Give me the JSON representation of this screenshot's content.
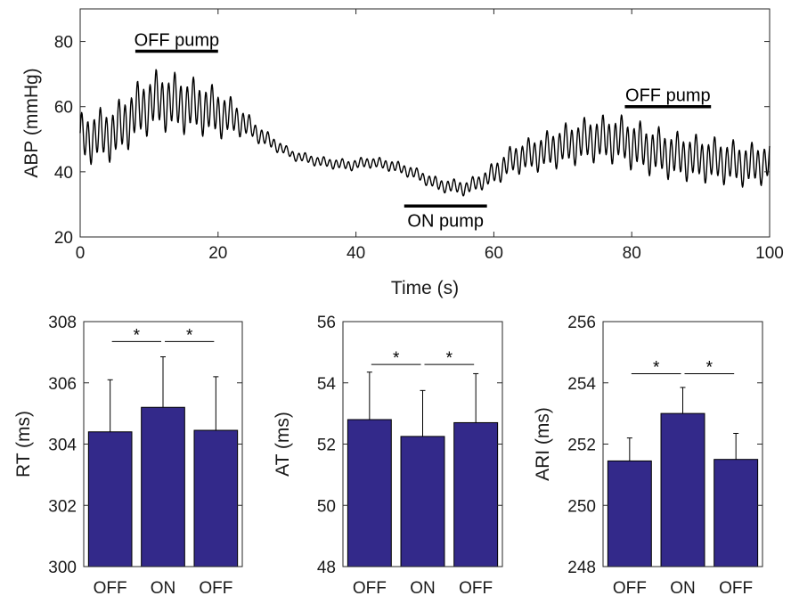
{
  "colors": {
    "bar": "#33298a",
    "axis": "#262626",
    "trace": "#000000"
  },
  "chart_data": [
    {
      "type": "line",
      "title": "",
      "xlabel": "Time (s)",
      "ylabel": "ABP (mmHg)",
      "xlim": [
        0,
        100
      ],
      "ylim": [
        20,
        90
      ],
      "xticks": [
        "0",
        "20",
        "40",
        "60",
        "80",
        "100"
      ],
      "yticks": [
        "20",
        "40",
        "60",
        "80"
      ],
      "series": [
        {
          "baseline": [
            [
              0,
              50
            ],
            [
              5,
              52
            ],
            [
              8,
              58
            ],
            [
              11,
              62
            ],
            [
              14,
              61
            ],
            [
              17,
              60
            ],
            [
              20,
              58
            ],
            [
              23,
              56
            ],
            [
              27,
              50
            ],
            [
              31,
              45
            ],
            [
              35,
              43
            ],
            [
              39,
              42
            ],
            [
              42,
              43
            ],
            [
              45,
              42
            ],
            [
              48,
              40
            ],
            [
              52,
              36
            ],
            [
              56,
              35
            ],
            [
              59,
              38
            ],
            [
              63,
              44
            ],
            [
              67,
              46
            ],
            [
              70,
              48
            ],
            [
              74,
              50
            ],
            [
              78,
              50
            ],
            [
              82,
              47
            ],
            [
              86,
              45
            ],
            [
              90,
              44
            ],
            [
              94,
              43
            ],
            [
              97,
              42
            ],
            [
              100,
              43
            ]
          ],
          "amplitude": [
            [
              0,
              6
            ],
            [
              8,
              7
            ],
            [
              14,
              7
            ],
            [
              20,
              6
            ],
            [
              25,
              2.5
            ],
            [
              30,
              1.2
            ],
            [
              50,
              1.5
            ],
            [
              58,
              2
            ],
            [
              62,
              3.5
            ],
            [
              70,
              5
            ],
            [
              80,
              6
            ],
            [
              100,
              5
            ]
          ]
        }
      ],
      "annotations": [
        {
          "label": "OFF pump",
          "x_range": [
            8,
            20
          ],
          "y": 77,
          "label_position": "above"
        },
        {
          "label": "ON pump",
          "x_range": [
            47,
            59
          ],
          "y": 29.5,
          "label_position": "below"
        },
        {
          "label": "OFF pump",
          "x_range": [
            79,
            91.5
          ],
          "y": 60,
          "label_position": "above"
        }
      ]
    },
    {
      "type": "bar",
      "ylabel": "RT (ms)",
      "categories": [
        "OFF",
        "ON",
        "OFF"
      ],
      "values": [
        304.4,
        305.2,
        304.45
      ],
      "errors": [
        1.7,
        1.65,
        1.75
      ],
      "ylim": [
        300,
        308
      ],
      "yticks": [
        "300",
        "302",
        "304",
        "306",
        "308"
      ],
      "significance": [
        {
          "between": [
            0,
            1
          ],
          "y": 307.35,
          "label": "*"
        },
        {
          "between": [
            1,
            2
          ],
          "y": 307.35,
          "label": "*"
        }
      ]
    },
    {
      "type": "bar",
      "ylabel": "AT (ms)",
      "categories": [
        "OFF",
        "ON",
        "OFF"
      ],
      "values": [
        52.8,
        52.25,
        52.7
      ],
      "errors": [
        1.55,
        1.5,
        1.6
      ],
      "ylim": [
        48,
        56
      ],
      "yticks": [
        "48",
        "50",
        "52",
        "54",
        "56"
      ],
      "significance": [
        {
          "between": [
            0,
            1
          ],
          "y": 54.6,
          "label": "*"
        },
        {
          "between": [
            1,
            2
          ],
          "y": 54.6,
          "label": "*"
        }
      ]
    },
    {
      "type": "bar",
      "ylabel": "ARI (ms)",
      "categories": [
        "OFF",
        "ON",
        "OFF"
      ],
      "values": [
        251.45,
        253.0,
        251.5
      ],
      "errors": [
        0.75,
        0.85,
        0.85
      ],
      "ylim": [
        248,
        256
      ],
      "yticks": [
        "248",
        "250",
        "252",
        "254",
        "256"
      ],
      "significance": [
        {
          "between": [
            0,
            1
          ],
          "y": 254.3,
          "label": "*"
        },
        {
          "between": [
            1,
            2
          ],
          "y": 254.3,
          "label": "*"
        }
      ]
    }
  ]
}
